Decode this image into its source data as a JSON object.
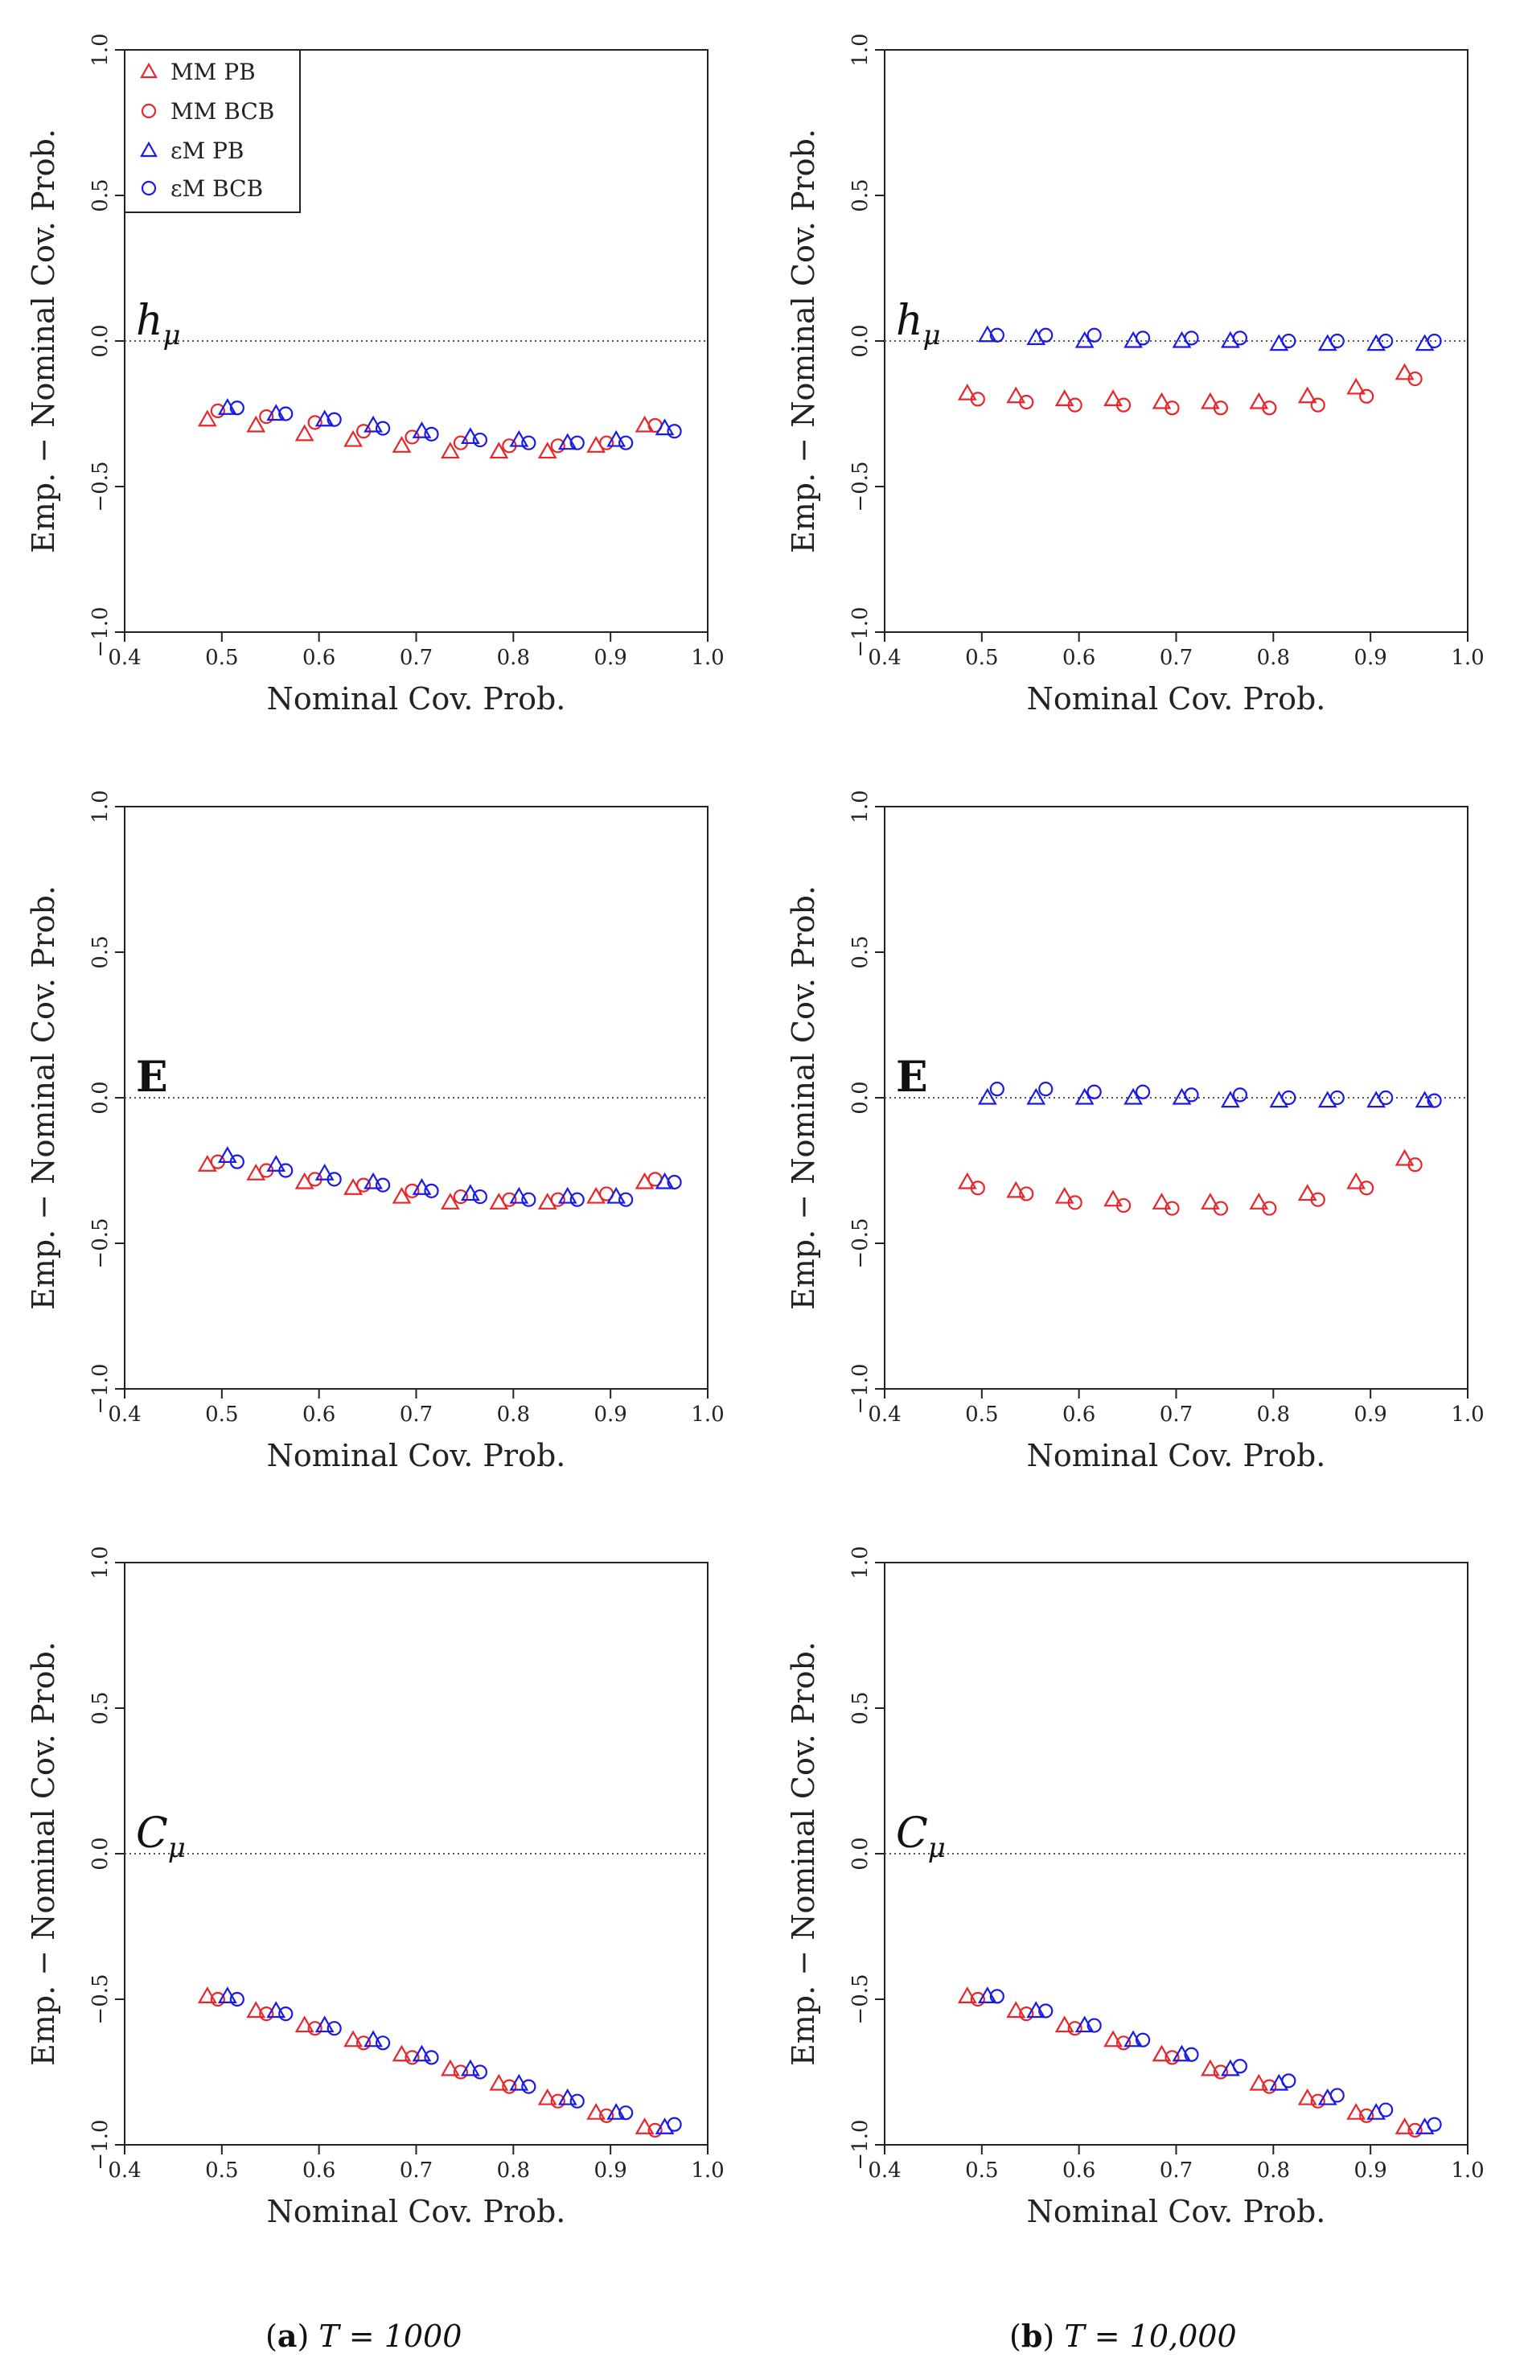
{
  "figure": {
    "captions": [
      {
        "letter": "a",
        "text": "T = 1000"
      },
      {
        "letter": "b",
        "text": "T = 10,000"
      }
    ]
  },
  "legend": {
    "entries": [
      {
        "label": "MM PB",
        "marker": "triangle",
        "color": "#e8262a"
      },
      {
        "label": "MM BCB",
        "marker": "circle",
        "color": "#e8262a"
      },
      {
        "label": "εM PB",
        "marker": "triangle",
        "color": "#1a1ae6"
      },
      {
        "label": "εM BCB",
        "marker": "circle",
        "color": "#1a1ae6"
      }
    ]
  },
  "colors": {
    "mm": "#e8262a",
    "em": "#1a1ae6"
  },
  "chart_data": [
    {
      "type": "scatter",
      "panel": "h_mu, T=1000",
      "label_main": "h",
      "label_sub": "μ",
      "label_style": "italic",
      "xlabel": "Nominal Cov. Prob.",
      "ylabel": "Emp. − Nominal Cov. Prob.",
      "xlim": [
        0.4,
        1.0
      ],
      "ylim": [
        -1.0,
        1.0
      ],
      "xticks": [
        "0.4",
        "0.5",
        "0.6",
        "0.7",
        "0.8",
        "0.9",
        "1.0"
      ],
      "yticks": [
        "−1.0",
        "−0.5",
        "0.0",
        "0.5",
        "1.0"
      ],
      "reference_line": 0.0,
      "show_legend": true,
      "x": [
        0.5,
        0.55,
        0.6,
        0.65,
        0.7,
        0.75,
        0.8,
        0.85,
        0.9,
        0.95
      ],
      "series": [
        {
          "name": "MM PB",
          "values": [
            -0.27,
            -0.29,
            -0.32,
            -0.34,
            -0.36,
            -0.38,
            -0.38,
            -0.38,
            -0.36,
            -0.29
          ]
        },
        {
          "name": "MM BCB",
          "values": [
            -0.24,
            -0.26,
            -0.28,
            -0.31,
            -0.33,
            -0.35,
            -0.36,
            -0.36,
            -0.35,
            -0.29
          ]
        },
        {
          "name": "εM PB",
          "values": [
            -0.23,
            -0.25,
            -0.27,
            -0.29,
            -0.31,
            -0.33,
            -0.34,
            -0.35,
            -0.34,
            -0.3
          ]
        },
        {
          "name": "εM BCB",
          "values": [
            -0.23,
            -0.25,
            -0.27,
            -0.3,
            -0.32,
            -0.34,
            -0.35,
            -0.35,
            -0.35,
            -0.31
          ]
        }
      ]
    },
    {
      "type": "scatter",
      "panel": "h_mu, T=10000",
      "label_main": "h",
      "label_sub": "μ",
      "label_style": "italic",
      "xlabel": "Nominal Cov. Prob.",
      "ylabel": "Emp. − Nominal Cov. Prob.",
      "xlim": [
        0.4,
        1.0
      ],
      "ylim": [
        -1.0,
        1.0
      ],
      "xticks": [
        "0.4",
        "0.5",
        "0.6",
        "0.7",
        "0.8",
        "0.9",
        "1.0"
      ],
      "yticks": [
        "−1.0",
        "−0.5",
        "0.0",
        "0.5",
        "1.0"
      ],
      "reference_line": 0.0,
      "show_legend": false,
      "x": [
        0.5,
        0.55,
        0.6,
        0.65,
        0.7,
        0.75,
        0.8,
        0.85,
        0.9,
        0.95
      ],
      "series": [
        {
          "name": "MM PB",
          "values": [
            -0.18,
            -0.19,
            -0.2,
            -0.2,
            -0.21,
            -0.21,
            -0.21,
            -0.19,
            -0.16,
            -0.11
          ]
        },
        {
          "name": "MM BCB",
          "values": [
            -0.2,
            -0.21,
            -0.22,
            -0.22,
            -0.23,
            -0.23,
            -0.23,
            -0.22,
            -0.19,
            -0.13
          ]
        },
        {
          "name": "εM PB",
          "values": [
            0.02,
            0.01,
            0.0,
            0.0,
            0.0,
            0.0,
            -0.01,
            -0.01,
            -0.01,
            -0.01
          ]
        },
        {
          "name": "εM BCB",
          "values": [
            0.02,
            0.02,
            0.02,
            0.01,
            0.01,
            0.01,
            0.0,
            0.0,
            0.0,
            0.0
          ]
        }
      ]
    },
    {
      "type": "scatter",
      "panel": "E, T=1000",
      "label_main": "E",
      "label_sub": "",
      "label_style": "bold",
      "xlabel": "Nominal Cov. Prob.",
      "ylabel": "Emp. − Nominal Cov. Prob.",
      "xlim": [
        0.4,
        1.0
      ],
      "ylim": [
        -1.0,
        1.0
      ],
      "xticks": [
        "0.4",
        "0.5",
        "0.6",
        "0.7",
        "0.8",
        "0.9",
        "1.0"
      ],
      "yticks": [
        "−1.0",
        "−0.5",
        "0.0",
        "0.5",
        "1.0"
      ],
      "reference_line": 0.0,
      "show_legend": false,
      "x": [
        0.5,
        0.55,
        0.6,
        0.65,
        0.7,
        0.75,
        0.8,
        0.85,
        0.9,
        0.95
      ],
      "series": [
        {
          "name": "MM PB",
          "values": [
            -0.23,
            -0.26,
            -0.29,
            -0.31,
            -0.34,
            -0.36,
            -0.36,
            -0.36,
            -0.34,
            -0.29
          ]
        },
        {
          "name": "MM BCB",
          "values": [
            -0.22,
            -0.25,
            -0.28,
            -0.3,
            -0.32,
            -0.34,
            -0.35,
            -0.35,
            -0.33,
            -0.28
          ]
        },
        {
          "name": "εM PB",
          "values": [
            -0.2,
            -0.23,
            -0.26,
            -0.29,
            -0.31,
            -0.33,
            -0.34,
            -0.34,
            -0.34,
            -0.29
          ]
        },
        {
          "name": "εM BCB",
          "values": [
            -0.22,
            -0.25,
            -0.28,
            -0.3,
            -0.32,
            -0.34,
            -0.35,
            -0.35,
            -0.35,
            -0.29
          ]
        }
      ]
    },
    {
      "type": "scatter",
      "panel": "E, T=10000",
      "label_main": "E",
      "label_sub": "",
      "label_style": "bold",
      "xlabel": "Nominal Cov. Prob.",
      "ylabel": "Emp. − Nominal Cov. Prob.",
      "xlim": [
        0.4,
        1.0
      ],
      "ylim": [
        -1.0,
        1.0
      ],
      "xticks": [
        "0.4",
        "0.5",
        "0.6",
        "0.7",
        "0.8",
        "0.9",
        "1.0"
      ],
      "yticks": [
        "−1.0",
        "−0.5",
        "0.0",
        "0.5",
        "1.0"
      ],
      "reference_line": 0.0,
      "show_legend": false,
      "x": [
        0.5,
        0.55,
        0.6,
        0.65,
        0.7,
        0.75,
        0.8,
        0.85,
        0.9,
        0.95
      ],
      "series": [
        {
          "name": "MM PB",
          "values": [
            -0.29,
            -0.32,
            -0.34,
            -0.35,
            -0.36,
            -0.36,
            -0.36,
            -0.33,
            -0.29,
            -0.21
          ]
        },
        {
          "name": "MM BCB",
          "values": [
            -0.31,
            -0.33,
            -0.36,
            -0.37,
            -0.38,
            -0.38,
            -0.38,
            -0.35,
            -0.31,
            -0.23
          ]
        },
        {
          "name": "εM PB",
          "values": [
            0.0,
            0.0,
            0.0,
            0.0,
            0.0,
            -0.01,
            -0.01,
            -0.01,
            -0.01,
            -0.01
          ]
        },
        {
          "name": "εM BCB",
          "values": [
            0.03,
            0.03,
            0.02,
            0.02,
            0.01,
            0.01,
            0.0,
            0.0,
            0.0,
            -0.01
          ]
        }
      ]
    },
    {
      "type": "scatter",
      "panel": "C_mu, T=1000",
      "label_main": "C",
      "label_sub": "μ",
      "label_style": "italic",
      "xlabel": "Nominal Cov. Prob.",
      "ylabel": "Emp. − Nominal Cov. Prob.",
      "xlim": [
        0.4,
        1.0
      ],
      "ylim": [
        -1.0,
        1.0
      ],
      "xticks": [
        "0.4",
        "0.5",
        "0.6",
        "0.7",
        "0.8",
        "0.9",
        "1.0"
      ],
      "yticks": [
        "−1.0",
        "−0.5",
        "0.0",
        "0.5",
        "1.0"
      ],
      "reference_line": 0.0,
      "show_legend": false,
      "x": [
        0.5,
        0.55,
        0.6,
        0.65,
        0.7,
        0.75,
        0.8,
        0.85,
        0.9,
        0.95
      ],
      "series": [
        {
          "name": "MM PB",
          "values": [
            -0.49,
            -0.54,
            -0.59,
            -0.64,
            -0.69,
            -0.74,
            -0.79,
            -0.84,
            -0.89,
            -0.94
          ]
        },
        {
          "name": "MM BCB",
          "values": [
            -0.5,
            -0.55,
            -0.6,
            -0.65,
            -0.7,
            -0.75,
            -0.8,
            -0.85,
            -0.9,
            -0.95
          ]
        },
        {
          "name": "εM PB",
          "values": [
            -0.49,
            -0.54,
            -0.59,
            -0.64,
            -0.69,
            -0.74,
            -0.79,
            -0.84,
            -0.89,
            -0.94
          ]
        },
        {
          "name": "εM BCB",
          "values": [
            -0.5,
            -0.55,
            -0.6,
            -0.65,
            -0.7,
            -0.75,
            -0.8,
            -0.85,
            -0.89,
            -0.93
          ]
        }
      ]
    },
    {
      "type": "scatter",
      "panel": "C_mu, T=10000",
      "label_main": "C",
      "label_sub": "μ",
      "label_style": "italic",
      "xlabel": "Nominal Cov. Prob.",
      "ylabel": "Emp. − Nominal Cov. Prob.",
      "xlim": [
        0.4,
        1.0
      ],
      "ylim": [
        -1.0,
        1.0
      ],
      "xticks": [
        "0.4",
        "0.5",
        "0.6",
        "0.7",
        "0.8",
        "0.9",
        "1.0"
      ],
      "yticks": [
        "−1.0",
        "−0.5",
        "0.0",
        "0.5",
        "1.0"
      ],
      "reference_line": 0.0,
      "show_legend": false,
      "x": [
        0.5,
        0.55,
        0.6,
        0.65,
        0.7,
        0.75,
        0.8,
        0.85,
        0.9,
        0.95
      ],
      "series": [
        {
          "name": "MM PB",
          "values": [
            -0.49,
            -0.54,
            -0.59,
            -0.64,
            -0.69,
            -0.74,
            -0.79,
            -0.84,
            -0.89,
            -0.94
          ]
        },
        {
          "name": "MM BCB",
          "values": [
            -0.5,
            -0.55,
            -0.6,
            -0.65,
            -0.7,
            -0.75,
            -0.8,
            -0.85,
            -0.9,
            -0.95
          ]
        },
        {
          "name": "εM PB",
          "values": [
            -0.49,
            -0.54,
            -0.59,
            -0.64,
            -0.69,
            -0.74,
            -0.79,
            -0.84,
            -0.89,
            -0.94
          ]
        },
        {
          "name": "εM BCB",
          "values": [
            -0.49,
            -0.54,
            -0.59,
            -0.64,
            -0.69,
            -0.73,
            -0.78,
            -0.83,
            -0.88,
            -0.93
          ]
        }
      ]
    }
  ]
}
